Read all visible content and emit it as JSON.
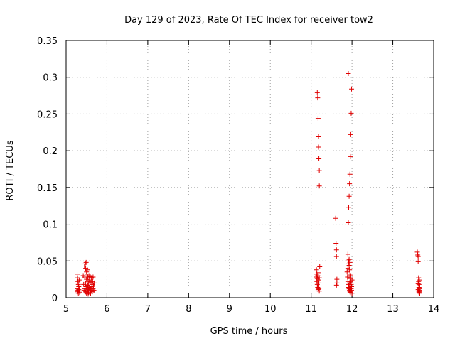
{
  "chart_data": {
    "type": "scatter",
    "title": "Day 129 of 2023, Rate Of TEC Index for receiver tow2",
    "xlabel": "GPS time / hours",
    "ylabel": "ROTI / TECUs",
    "xlim": [
      5,
      14
    ],
    "ylim": [
      0,
      0.35
    ],
    "xticks": [
      "5",
      "6",
      "7",
      "8",
      "9",
      "10",
      "11",
      "12",
      "13",
      "14"
    ],
    "yticks": [
      "0",
      "0.05",
      "0.1",
      "0.15",
      "0.2",
      "0.25",
      "0.3",
      "0.35"
    ],
    "grid": true,
    "marker": "+",
    "color": "#e00000",
    "series": [
      {
        "name": "ROTI",
        "x": [
          5.27,
          5.27,
          5.28,
          5.28,
          5.29,
          5.29,
          5.3,
          5.3,
          5.31,
          5.31,
          5.32,
          5.32,
          5.33,
          5.33,
          5.42,
          5.43,
          5.44,
          5.45,
          5.46,
          5.46,
          5.47,
          5.48,
          5.48,
          5.49,
          5.49,
          5.5,
          5.5,
          5.51,
          5.51,
          5.52,
          5.52,
          5.53,
          5.53,
          5.54,
          5.55,
          5.55,
          5.56,
          5.56,
          5.57,
          5.58,
          5.58,
          5.59,
          5.6,
          5.6,
          5.61,
          5.62,
          5.62,
          5.63,
          5.64,
          5.64,
          5.65,
          5.66,
          5.66,
          5.67,
          5.68,
          5.69,
          5.5,
          5.52,
          5.48,
          5.54,
          11.13,
          11.13,
          11.14,
          11.14,
          11.15,
          11.15,
          11.16,
          11.16,
          11.17,
          11.17,
          11.18,
          11.18,
          11.19,
          11.19,
          11.2,
          11.2,
          11.15,
          11.16,
          11.17,
          11.18,
          11.18,
          11.19,
          11.2,
          11.2,
          11.21,
          11.6,
          11.61,
          11.62,
          11.62,
          11.63,
          11.63,
          11.62,
          11.88,
          11.89,
          11.9,
          11.9,
          11.91,
          11.91,
          11.92,
          11.92,
          11.93,
          11.93,
          11.94,
          11.94,
          11.95,
          11.95,
          11.96,
          11.96,
          11.97,
          11.97,
          11.98,
          11.98,
          11.99,
          11.99,
          12.0,
          12.0,
          11.9,
          11.91,
          11.92,
          11.93,
          11.94,
          11.95,
          11.96,
          11.97,
          11.98,
          11.99,
          11.91,
          11.93,
          11.95,
          11.97,
          11.92,
          11.94,
          11.96,
          13.6,
          13.61,
          13.62,
          13.62,
          13.63,
          13.63,
          13.64,
          13.64,
          13.65,
          13.65,
          13.66,
          13.66,
          13.62,
          13.64,
          13.63,
          13.65,
          13.66,
          13.64,
          13.62
        ],
        "y": [
          0.032,
          0.012,
          0.027,
          0.008,
          0.022,
          0.01,
          0.018,
          0.006,
          0.015,
          0.011,
          0.024,
          0.009,
          0.013,
          0.007,
          0.03,
          0.018,
          0.01,
          0.043,
          0.028,
          0.012,
          0.046,
          0.02,
          0.008,
          0.048,
          0.015,
          0.025,
          0.006,
          0.032,
          0.012,
          0.022,
          0.009,
          0.017,
          0.028,
          0.011,
          0.02,
          0.007,
          0.03,
          0.014,
          0.024,
          0.01,
          0.016,
          0.029,
          0.012,
          0.006,
          0.021,
          0.027,
          0.009,
          0.015,
          0.018,
          0.008,
          0.022,
          0.012,
          0.028,
          0.016,
          0.01,
          0.02,
          0.035,
          0.038,
          0.04,
          0.005,
          0.038,
          0.028,
          0.032,
          0.022,
          0.026,
          0.018,
          0.03,
          0.014,
          0.034,
          0.011,
          0.024,
          0.016,
          0.02,
          0.012,
          0.027,
          0.009,
          0.279,
          0.272,
          0.244,
          0.219,
          0.205,
          0.189,
          0.173,
          0.152,
          0.042,
          0.108,
          0.074,
          0.065,
          0.056,
          0.025,
          0.02,
          0.017,
          0.035,
          0.028,
          0.04,
          0.022,
          0.046,
          0.018,
          0.05,
          0.014,
          0.044,
          0.012,
          0.038,
          0.01,
          0.032,
          0.008,
          0.027,
          0.007,
          0.022,
          0.009,
          0.018,
          0.012,
          0.015,
          0.01,
          0.024,
          0.006,
          0.059,
          0.102,
          0.123,
          0.138,
          0.155,
          0.168,
          0.192,
          0.222,
          0.251,
          0.284,
          0.305,
          0.052,
          0.048,
          0.03,
          0.016,
          0.02,
          0.026,
          0.062,
          0.058,
          0.056,
          0.049,
          0.027,
          0.022,
          0.018,
          0.014,
          0.012,
          0.01,
          0.008,
          0.016,
          0.011,
          0.013,
          0.009,
          0.024,
          0.006,
          0.007,
          0.019
        ]
      }
    ]
  }
}
